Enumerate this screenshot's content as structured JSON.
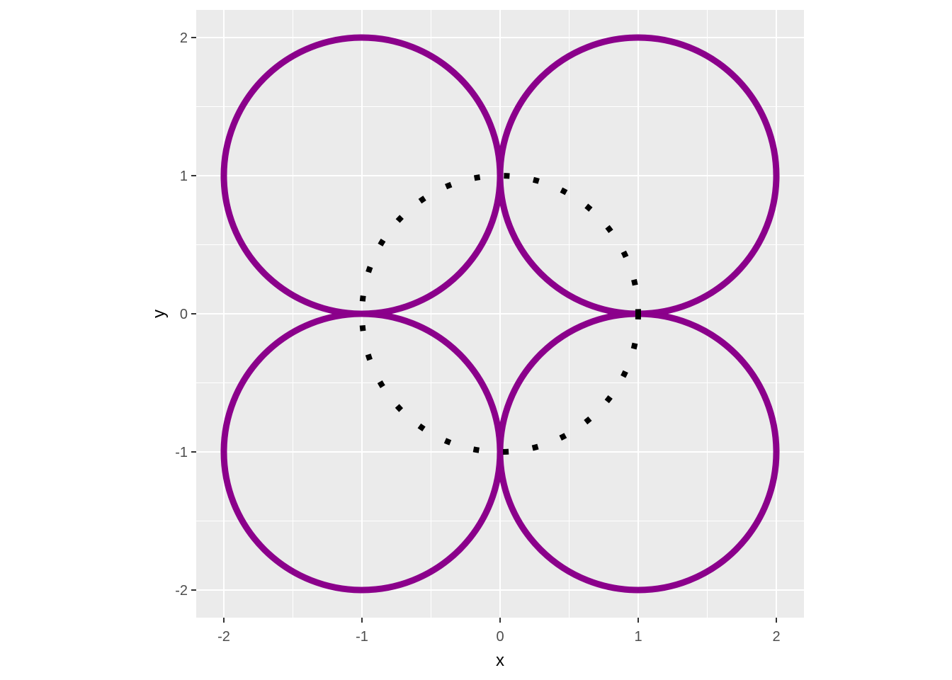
{
  "chart_data": {
    "type": "line",
    "title": "",
    "xlabel": "x",
    "ylabel": "y",
    "xlim": [
      -2.2,
      2.2
    ],
    "ylim": [
      -2.2,
      2.2
    ],
    "x_ticks": [
      -2,
      -1,
      0,
      1,
      2
    ],
    "y_ticks": [
      -2,
      -1,
      0,
      1,
      2
    ],
    "x_tick_labels": [
      "-2",
      "-1",
      "0",
      "1",
      "2"
    ],
    "y_tick_labels": [
      "-2",
      "-1",
      "0",
      "1",
      "2"
    ],
    "grid": true,
    "legend": "none",
    "panel_background": "#ebebeb",
    "grid_color": "#ffffff",
    "series": [
      {
        "shape": "circle",
        "center": [
          -1,
          1
        ],
        "radius": 1,
        "color": "#8b008b",
        "linestyle": "solid"
      },
      {
        "shape": "circle",
        "center": [
          1,
          1
        ],
        "radius": 1,
        "color": "#8b008b",
        "linestyle": "solid"
      },
      {
        "shape": "circle",
        "center": [
          -1,
          -1
        ],
        "radius": 1,
        "color": "#8b008b",
        "linestyle": "solid"
      },
      {
        "shape": "circle",
        "center": [
          1,
          -1
        ],
        "radius": 1,
        "color": "#8b008b",
        "linestyle": "solid"
      },
      {
        "shape": "circle",
        "center": [
          0,
          0
        ],
        "radius": 1,
        "color": "#000000",
        "linestyle": "dotted"
      }
    ]
  }
}
